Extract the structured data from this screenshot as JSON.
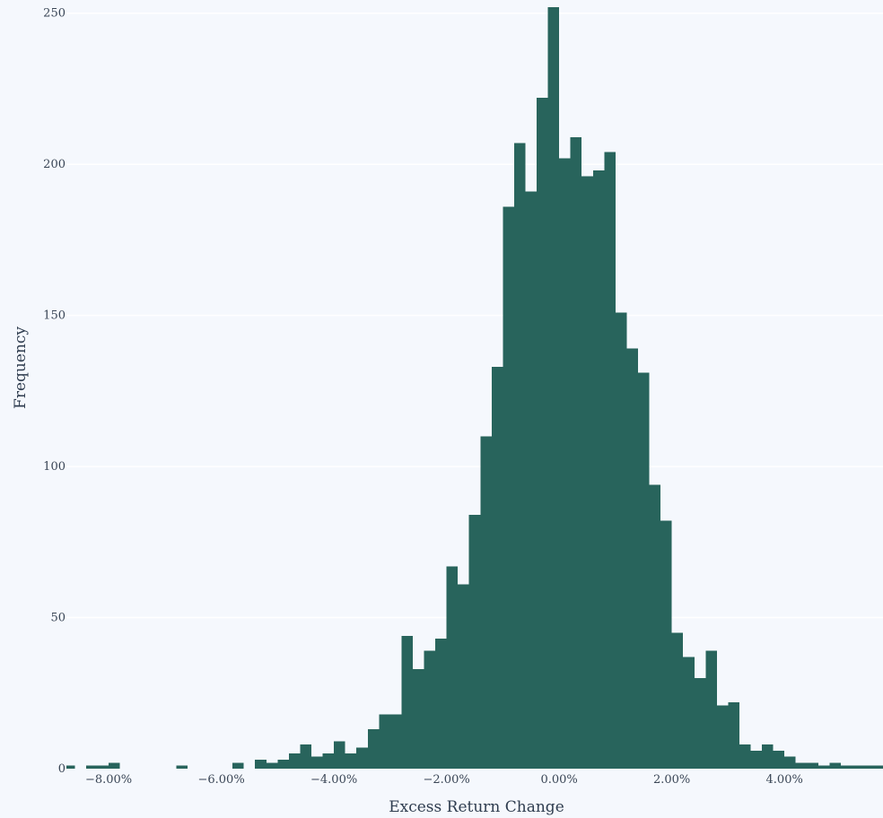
{
  "chart_data": {
    "type": "bar",
    "title": "",
    "xlabel": "Excess Return Change",
    "ylabel": "Frequency",
    "bin_width": 0.2,
    "xlim": [
      -8.75,
      5.75
    ],
    "ylim": [
      0,
      252
    ],
    "grid": true,
    "legend": "none",
    "bar_color": "#28645c",
    "x_ticks": [
      {
        "value": -8,
        "label": "−8.00%"
      },
      {
        "value": -6,
        "label": "−6.00%"
      },
      {
        "value": -4,
        "label": "−4.00%"
      },
      {
        "value": -2,
        "label": "−2.00%"
      },
      {
        "value": 0,
        "label": "0.00%"
      },
      {
        "value": 2,
        "label": "2.00%"
      },
      {
        "value": 4,
        "label": "4.00%"
      }
    ],
    "y_ticks": [
      {
        "value": 0,
        "label": "0"
      },
      {
        "value": 50,
        "label": "50"
      },
      {
        "value": 100,
        "label": "100"
      },
      {
        "value": 150,
        "label": "150"
      },
      {
        "value": 200,
        "label": "200"
      },
      {
        "value": 250,
        "label": "250"
      }
    ],
    "bins": [
      {
        "x0": -8.8,
        "count": 1
      },
      {
        "x0": -8.4,
        "count": 1
      },
      {
        "x0": -8.2,
        "count": 1
      },
      {
        "x0": -8.0,
        "count": 2
      },
      {
        "x0": -6.8,
        "count": 1
      },
      {
        "x0": -5.8,
        "count": 2
      },
      {
        "x0": -5.4,
        "count": 3
      },
      {
        "x0": -5.2,
        "count": 2
      },
      {
        "x0": -5.0,
        "count": 3
      },
      {
        "x0": -4.8,
        "count": 5
      },
      {
        "x0": -4.6,
        "count": 8
      },
      {
        "x0": -4.4,
        "count": 4
      },
      {
        "x0": -4.2,
        "count": 5
      },
      {
        "x0": -4.0,
        "count": 9
      },
      {
        "x0": -3.8,
        "count": 5
      },
      {
        "x0": -3.6,
        "count": 7
      },
      {
        "x0": -3.4,
        "count": 13
      },
      {
        "x0": -3.2,
        "count": 18
      },
      {
        "x0": -3.0,
        "count": 18
      },
      {
        "x0": -2.8,
        "count": 44
      },
      {
        "x0": -2.6,
        "count": 33
      },
      {
        "x0": -2.4,
        "count": 39
      },
      {
        "x0": -2.2,
        "count": 43
      },
      {
        "x0": -2.0,
        "count": 67
      },
      {
        "x0": -1.8,
        "count": 61
      },
      {
        "x0": -1.6,
        "count": 84
      },
      {
        "x0": -1.4,
        "count": 110
      },
      {
        "x0": -1.2,
        "count": 133
      },
      {
        "x0": -1.0,
        "count": 186
      },
      {
        "x0": -0.8,
        "count": 207
      },
      {
        "x0": -0.6,
        "count": 191
      },
      {
        "x0": -0.4,
        "count": 222
      },
      {
        "x0": -0.2,
        "count": 252
      },
      {
        "x0": 0.0,
        "count": 202
      },
      {
        "x0": 0.2,
        "count": 209
      },
      {
        "x0": 0.4,
        "count": 196
      },
      {
        "x0": 0.6,
        "count": 198
      },
      {
        "x0": 0.8,
        "count": 204
      },
      {
        "x0": 1.0,
        "count": 151
      },
      {
        "x0": 1.2,
        "count": 139
      },
      {
        "x0": 1.4,
        "count": 131
      },
      {
        "x0": 1.6,
        "count": 94
      },
      {
        "x0": 1.8,
        "count": 82
      },
      {
        "x0": 2.0,
        "count": 45
      },
      {
        "x0": 2.2,
        "count": 37
      },
      {
        "x0": 2.4,
        "count": 30
      },
      {
        "x0": 2.6,
        "count": 39
      },
      {
        "x0": 2.8,
        "count": 21
      },
      {
        "x0": 3.0,
        "count": 22
      },
      {
        "x0": 3.2,
        "count": 8
      },
      {
        "x0": 3.4,
        "count": 6
      },
      {
        "x0": 3.6,
        "count": 8
      },
      {
        "x0": 3.8,
        "count": 6
      },
      {
        "x0": 4.0,
        "count": 4
      },
      {
        "x0": 4.2,
        "count": 2
      },
      {
        "x0": 4.4,
        "count": 2
      },
      {
        "x0": 4.6,
        "count": 1
      },
      {
        "x0": 4.8,
        "count": 2
      },
      {
        "x0": 5.0,
        "count": 1
      },
      {
        "x0": 5.2,
        "count": 1
      },
      {
        "x0": 5.4,
        "count": 1
      },
      {
        "x0": 5.6,
        "count": 1
      }
    ]
  }
}
